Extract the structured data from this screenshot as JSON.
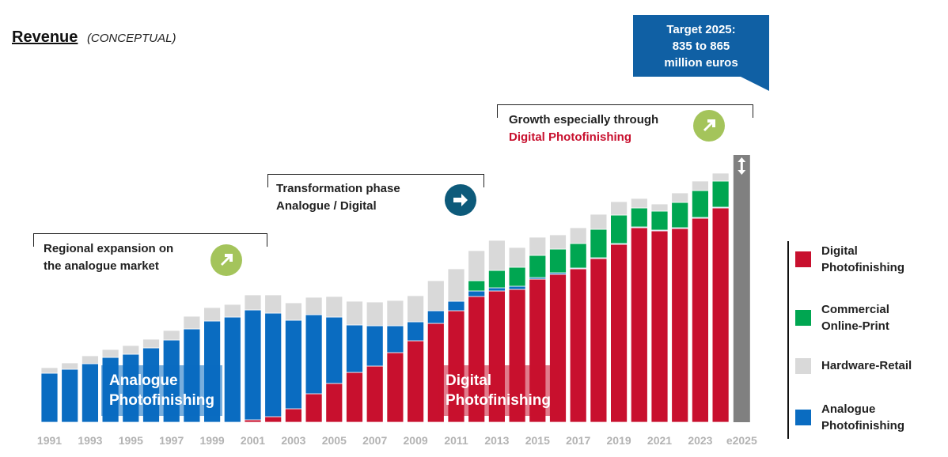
{
  "title": {
    "main": "Revenue",
    "sub": "(CONCEPTUAL)"
  },
  "target": {
    "line1": "Target 2025:",
    "line2": "835 to 865",
    "line3": "million euros"
  },
  "phases": [
    {
      "line1": "Regional expansion on",
      "line2": "the analogue market"
    },
    {
      "line1": "Transformation phase",
      "line2": "Analogue / Digital"
    },
    {
      "line1": "Growth especially through",
      "line2": "Digital Photofinishing"
    }
  ],
  "overlays": {
    "analogue": {
      "line1": "Analogue",
      "line2": "Photofinishing"
    },
    "digital": {
      "line1": "Digital",
      "line2": "Photofinishing"
    }
  },
  "legend": [
    {
      "line1": "Digital",
      "line2": "Photofinishing",
      "color": "#c8102e"
    },
    {
      "line1": "Commercial",
      "line2": "Online-Print",
      "color": "#00a651"
    },
    {
      "line1": "Hardware-Retail",
      "line2": "",
      "color": "#d9d9d9"
    },
    {
      "line1": "Analogue",
      "line2": "Photofinishing",
      "color": "#0a6cc1"
    }
  ],
  "colors": {
    "digital": "#c8102e",
    "online": "#00a651",
    "hardware": "#d9d9d9",
    "analogue": "#0a6cc1",
    "target": "#808080",
    "tick": "#b3b3b3"
  },
  "chart_data": {
    "type": "bar",
    "stacked": true,
    "title": "Revenue (CONCEPTUAL)",
    "xlabel": "",
    "ylabel": "",
    "ylim": [
      0,
      340
    ],
    "categories": [
      "1991",
      "1992",
      "1993",
      "1994",
      "1995",
      "1996",
      "1997",
      "1998",
      "1999",
      "2000",
      "2001",
      "2002",
      "2003",
      "2004",
      "2005",
      "2006",
      "2007",
      "2008",
      "2009",
      "2010",
      "2011",
      "2012",
      "2013",
      "2014",
      "2015",
      "2016",
      "2017",
      "2018",
      "2019",
      "2020",
      "2021",
      "2022",
      "2023",
      "2024"
    ],
    "tick_labels": [
      "1991",
      "1993",
      "1995",
      "1997",
      "1999",
      "2001",
      "2003",
      "2005",
      "2007",
      "2009",
      "2011",
      "2013",
      "2015",
      "2017",
      "2019",
      "2021",
      "2023"
    ],
    "series": [
      {
        "name": "Digital Photofinishing",
        "key": "digital",
        "values": [
          0,
          0,
          0,
          0,
          0,
          0,
          0,
          0,
          0,
          0,
          3,
          7,
          17,
          36,
          49,
          63,
          71,
          88,
          103,
          125,
          141,
          159,
          166,
          168,
          181,
          187,
          194,
          207,
          225,
          246,
          242,
          245,
          258,
          271
        ]
      },
      {
        "name": "Analogue Photofinishing",
        "key": "analogue",
        "values": [
          62,
          67,
          74,
          82,
          86,
          94,
          104,
          118,
          128,
          133,
          139,
          131,
          112,
          100,
          84,
          60,
          51,
          34,
          24,
          16,
          12,
          7,
          4,
          4,
          2,
          2,
          1,
          1,
          1,
          1,
          1,
          1,
          1,
          1
        ]
      },
      {
        "name": "Commercial Online-Print",
        "key": "online",
        "values": [
          0,
          0,
          0,
          0,
          0,
          0,
          0,
          0,
          0,
          0,
          0,
          0,
          0,
          0,
          0,
          0,
          0,
          0,
          0,
          0,
          0,
          13,
          22,
          24,
          28,
          30,
          31,
          36,
          36,
          24,
          24,
          32,
          34,
          33
        ]
      },
      {
        "name": "Hardware-Retail",
        "key": "hardware",
        "values": [
          7,
          8,
          10,
          10,
          11,
          11,
          12,
          16,
          17,
          16,
          19,
          23,
          22,
          22,
          26,
          30,
          30,
          32,
          33,
          38,
          41,
          38,
          38,
          25,
          23,
          18,
          20,
          19,
          17,
          12,
          9,
          12,
          12,
          10
        ]
      }
    ],
    "target_bar": {
      "label": "e2025",
      "value": 338
    }
  }
}
